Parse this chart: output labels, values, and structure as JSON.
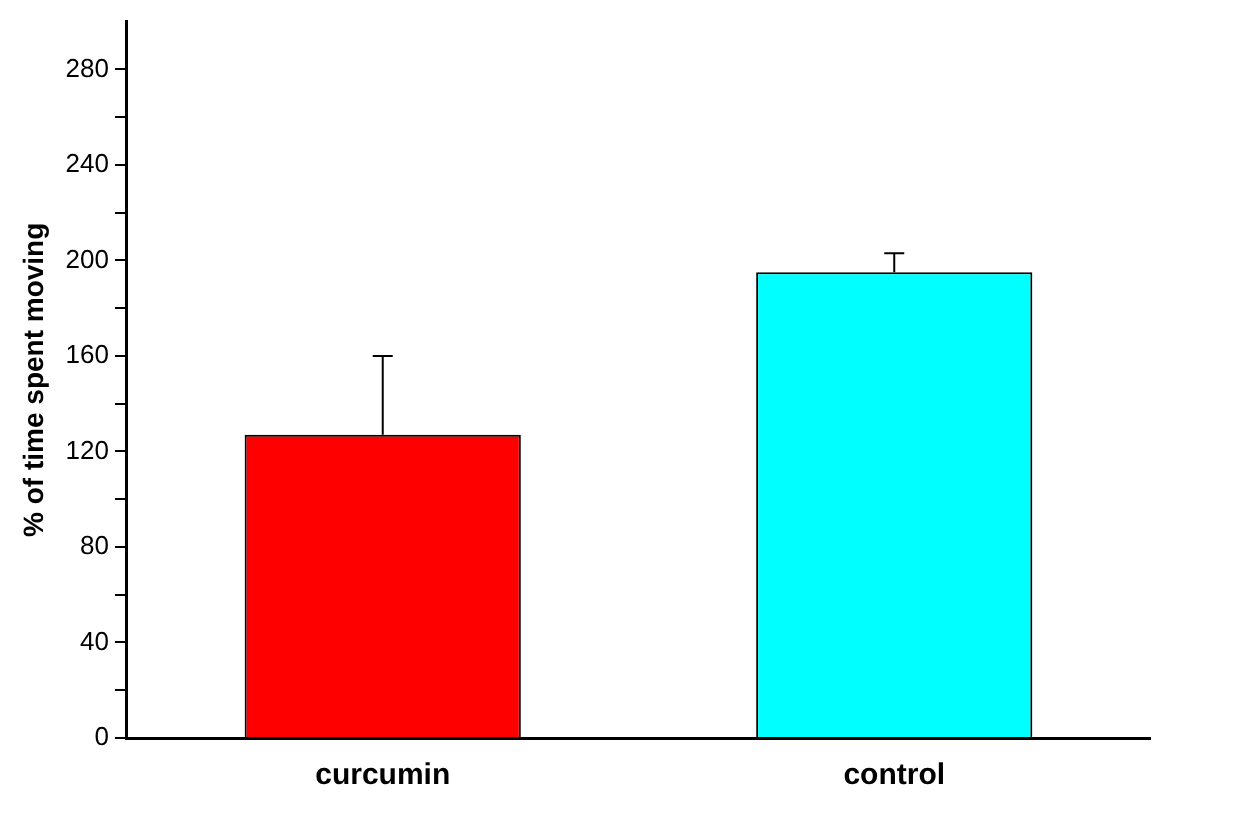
{
  "chart_data": {
    "type": "bar",
    "ylabel": "% of time spent moving",
    "categories": [
      "curcumin",
      "control"
    ],
    "values": [
      127,
      195
    ],
    "colors": [
      "#ff0000",
      "#00ffff"
    ],
    "errors": [
      [
        127,
        160
      ],
      [
        195,
        203
      ]
    ],
    "ylim": [
      0,
      300
    ],
    "yticks": [
      0,
      {
        "value": 20,
        "label": null
      },
      40,
      {
        "value": 60,
        "label": null
      },
      80,
      {
        "value": 100,
        "label": null
      },
      120,
      {
        "value": 140,
        "label": null
      },
      160,
      {
        "value": 180,
        "label": null
      },
      200,
      {
        "value": 220,
        "label": null
      },
      240,
      {
        "value": 260,
        "label": null
      },
      280
    ],
    "grid": false
  }
}
